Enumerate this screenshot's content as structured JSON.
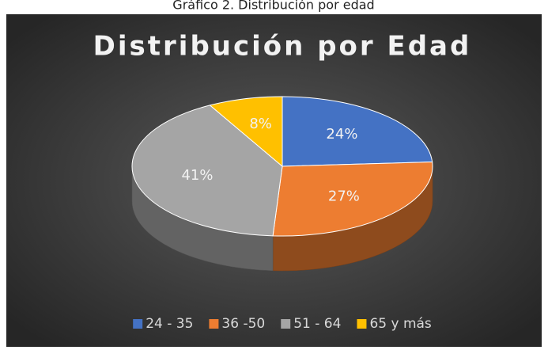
{
  "caption": "Gráfico 2. Distribución por edad",
  "chart_data": {
    "type": "pie3d",
    "title": "Distribución por Edad",
    "categories": [
      "24 - 35",
      "36 -50",
      "51 - 64",
      "65 y más"
    ],
    "values": [
      24,
      27,
      41,
      8
    ],
    "value_labels": [
      "24%",
      "27%",
      "41%",
      "8%"
    ],
    "colors": [
      "#4472c4",
      "#ed7d31",
      "#a5a5a5",
      "#ffc000"
    ],
    "legend": "bottom"
  }
}
